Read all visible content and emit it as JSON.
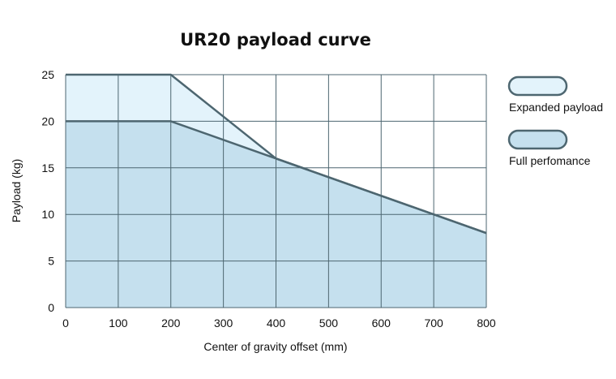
{
  "chart_data": {
    "type": "area",
    "title": "UR20 payload curve",
    "xlabel": "Center of gravity offset (mm)",
    "ylabel": "Payload (kg)",
    "xlim": [
      0,
      800
    ],
    "ylim": [
      0,
      25
    ],
    "xticks": [
      0,
      100,
      200,
      300,
      400,
      500,
      600,
      700,
      800
    ],
    "yticks": [
      0,
      5,
      10,
      15,
      20,
      25
    ],
    "grid": true,
    "legend_position": "right",
    "series": [
      {
        "name": "Expanded payload",
        "x": [
          0,
          200,
          400,
          800
        ],
        "y": [
          25,
          25,
          16,
          8
        ],
        "color": "#e3f3fb"
      },
      {
        "name": "Full perfomance",
        "x": [
          0,
          200,
          400,
          800
        ],
        "y": [
          20,
          20,
          16,
          8
        ],
        "color": "#c5e0ee"
      }
    ],
    "line_color": "#4d6670",
    "grid_color": "#4d6670"
  }
}
